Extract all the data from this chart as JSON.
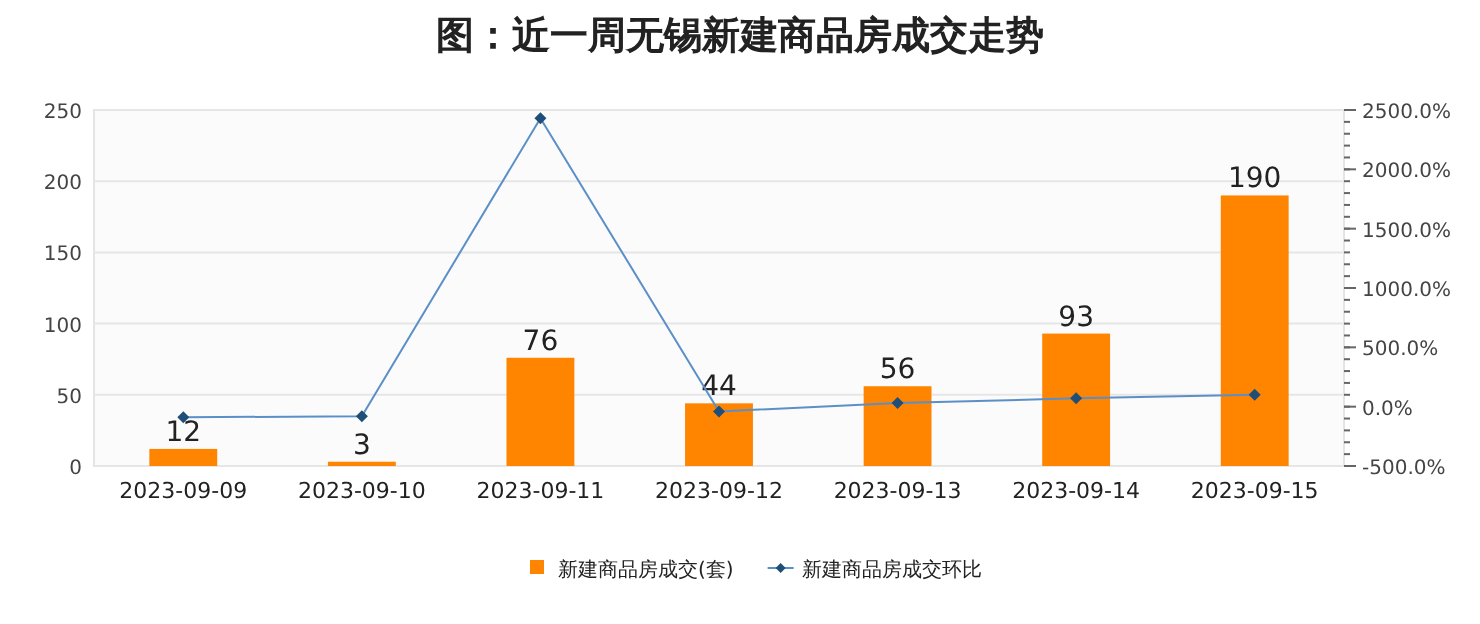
{
  "chart_data": {
    "type": "bar",
    "title": "图：近一周无锡新建商品房成交走势",
    "categories": [
      "2023-09-09",
      "2023-09-10",
      "2023-09-11",
      "2023-09-12",
      "2023-09-13",
      "2023-09-14",
      "2023-09-15"
    ],
    "series": [
      {
        "name": "新建商品房成交(套)",
        "color": "#ff8400",
        "values": [
          12,
          3,
          76,
          44,
          56,
          93,
          190
        ],
        "value_labels": [
          "12",
          "3",
          "76",
          "44",
          "56",
          "93",
          "190"
        ]
      },
      {
        "name": "新建商品房成交环比",
        "type": "line",
        "axis": "y2",
        "color": "#5b8fc7",
        "marker": "diamond",
        "values": [
          -90,
          -80,
          2430,
          -40,
          30,
          70,
          100
        ]
      }
    ],
    "ylim": [
      0,
      250
    ],
    "yticks": [
      0,
      50,
      100,
      150,
      200,
      250
    ],
    "y2lim": [
      -500,
      2500
    ],
    "y2ticks": [
      {
        "value": -500,
        "label": "-500.0%"
      },
      {
        "value": 0,
        "label": "0.0%"
      },
      {
        "value": 500,
        "label": "500.0%"
      },
      {
        "value": 1000,
        "label": "1000.0%"
      },
      {
        "value": 1500,
        "label": "1500.0%"
      },
      {
        "value": 2000,
        "label": "2000.0%"
      },
      {
        "value": 2500,
        "label": "2500.0%"
      }
    ],
    "grid": "y",
    "legend": "bottom"
  }
}
